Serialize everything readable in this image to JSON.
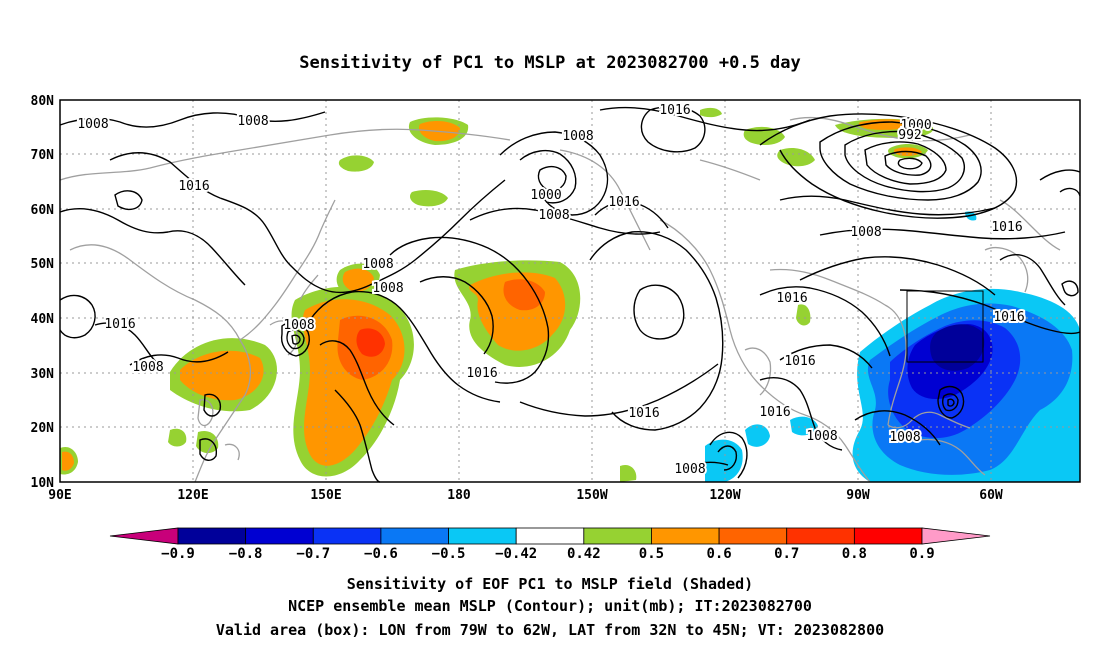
{
  "title": "Sensitivity of PC1 to MSLP at 2023082700 +0.5 day",
  "lat_labels": [
    "80N",
    "70N",
    "60N",
    "50N",
    "40N",
    "30N",
    "20N",
    "10N"
  ],
  "lon_labels": [
    "90E",
    "120E",
    "150E",
    "180",
    "150W",
    "120W",
    "90W",
    "60W"
  ],
  "colorbar": {
    "levels": [
      "-0.9",
      "-0.8",
      "-0.7",
      "-0.6",
      "-0.5",
      "-0.42",
      "0.42",
      "0.5",
      "0.6",
      "0.7",
      "0.8",
      "0.9"
    ],
    "colors": [
      "#c8007a",
      "#00009a",
      "#0000d2",
      "#0a32f5",
      "#0a78f5",
      "#0ac8f5",
      "#ffffff",
      "#96d232",
      "#ff9600",
      "#ff6400",
      "#ff3200",
      "#ff0000",
      "#ff9bc8"
    ]
  },
  "contour_labels": [
    {
      "text": "1008"
    },
    {
      "text": "1008"
    },
    {
      "text": "1016"
    },
    {
      "text": "1016"
    },
    {
      "text": "1008"
    },
    {
      "text": "1000"
    },
    {
      "text": "1008"
    },
    {
      "text": "1016"
    },
    {
      "text": "1008"
    },
    {
      "text": "1016"
    },
    {
      "text": "1008"
    },
    {
      "text": "1008"
    },
    {
      "text": "1008"
    },
    {
      "text": "1016"
    },
    {
      "text": "1016"
    },
    {
      "text": "1016"
    },
    {
      "text": "1016"
    },
    {
      "text": "1008"
    },
    {
      "text": "1016"
    },
    {
      "text": "1008"
    },
    {
      "text": "1000"
    },
    {
      "text": "992"
    },
    {
      "text": "1008"
    },
    {
      "text": "1016"
    },
    {
      "text": "1016"
    },
    {
      "text": "1008"
    }
  ],
  "caption": {
    "line1": "Sensitivity of EOF PC1 to MSLP field (Shaded)",
    "line2": "NCEP ensemble mean MSLP (Contour); unit(mb); IT:2023082700",
    "line3": "Valid area (box): LON from 79W to 62W, LAT from 32N to 45N; VT: 2023082800"
  }
}
